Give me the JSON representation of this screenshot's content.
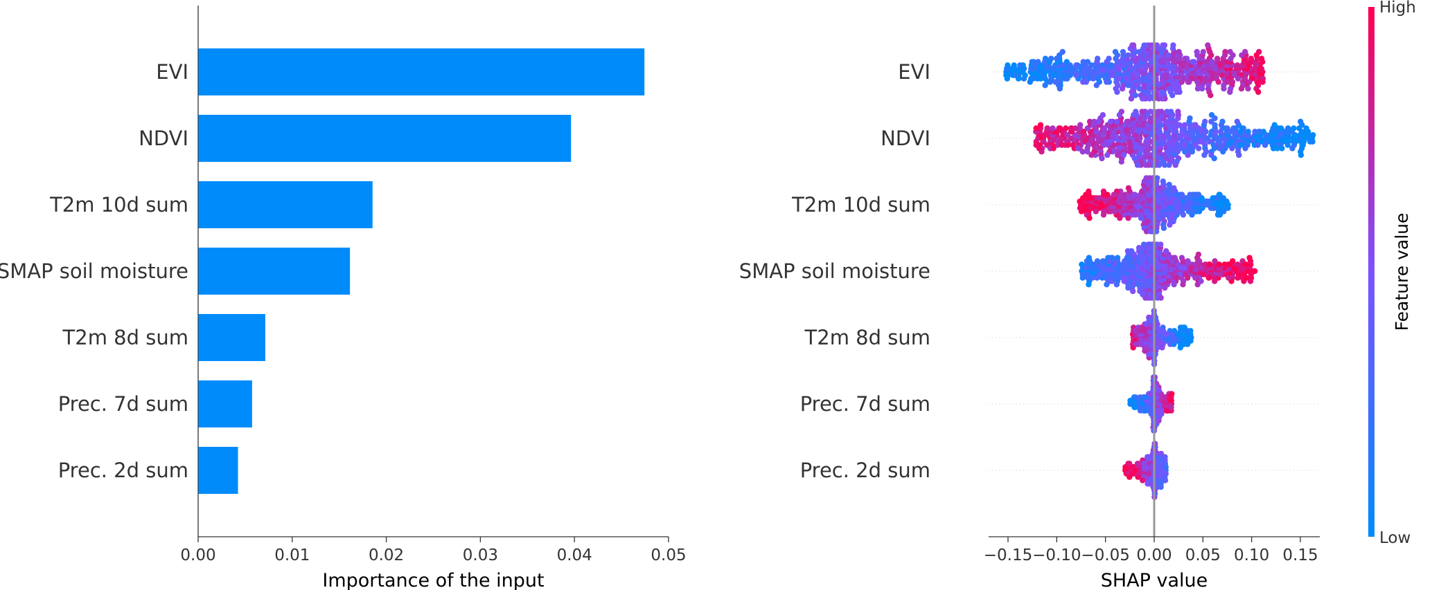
{
  "colors": {
    "bar": "#008bfb",
    "low": "#008bfb",
    "high": "#ff0051",
    "axis": "#333333"
  },
  "chart_data": [
    {
      "type": "bar",
      "orientation": "horizontal",
      "categories": [
        "EVI",
        "NDVI",
        "T2m 10d sum",
        "SMAP soil moisture",
        "T2m 8d sum",
        "Prec. 7d sum",
        "Prec. 2d sum"
      ],
      "values": [
        0.0474,
        0.0396,
        0.0185,
        0.0161,
        0.0071,
        0.0057,
        0.0042
      ],
      "xlabel": "Importance of the input",
      "xlim": [
        0,
        0.05
      ],
      "xticks": [
        0.0,
        0.01,
        0.02,
        0.03,
        0.04,
        0.05
      ],
      "xtick_labels": [
        "0.00",
        "0.01",
        "0.02",
        "0.03",
        "0.04",
        "0.05"
      ],
      "grid": false
    },
    {
      "type": "scatter",
      "subtype": "beeswarm",
      "categories": [
        "EVI",
        "NDVI",
        "T2m 10d sum",
        "SMAP soil moisture",
        "T2m 8d sum",
        "Prec. 7d sum",
        "Prec. 2d sum"
      ],
      "shap_range": [
        [
          -0.155,
          0.112
        ],
        [
          -0.122,
          0.165
        ],
        [
          -0.077,
          0.076
        ],
        [
          -0.075,
          0.105
        ],
        [
          -0.022,
          0.038
        ],
        [
          -0.025,
          0.018
        ],
        [
          -0.03,
          0.012
        ]
      ],
      "high_value_direction": [
        1,
        -1,
        -1,
        1,
        -1,
        1,
        -1
      ],
      "xlabel": "SHAP value",
      "xlim": [
        -0.17,
        0.17
      ],
      "xticks": [
        -0.15,
        -0.1,
        -0.05,
        0.0,
        0.05,
        0.1,
        0.15
      ],
      "xtick_labels": [
        "−0.15",
        "−0.10",
        "−0.05",
        "0.00",
        "0.05",
        "0.10",
        "0.15"
      ],
      "colorbar": {
        "title": "Feature value",
        "high_label": "High",
        "low_label": "Low"
      }
    }
  ]
}
